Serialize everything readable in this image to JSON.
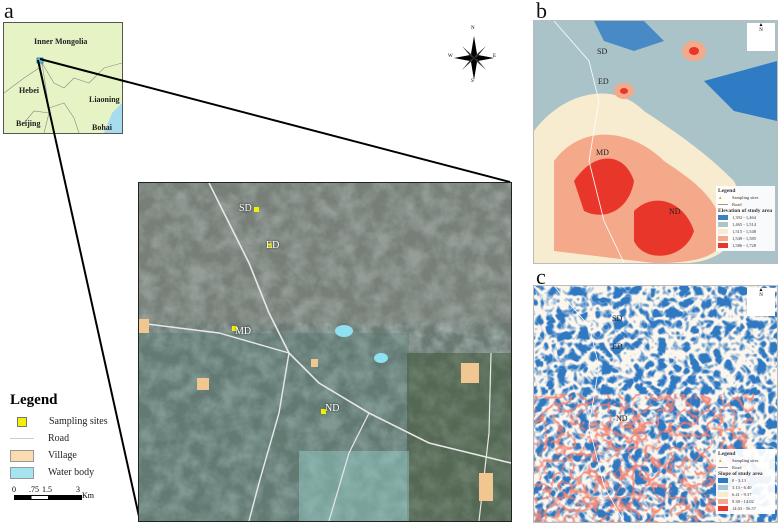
{
  "panels": {
    "a": "a",
    "b": "b",
    "c": "c"
  },
  "inset_map": {
    "regions": [
      "Inner Mongolia",
      "Hebei",
      "Liaoning",
      "Beijing",
      "Bohai Sea"
    ]
  },
  "sites": {
    "SD": "SD",
    "ED": "ED",
    "MD": "MD",
    "ND": "ND"
  },
  "legend_a": {
    "title": "Legend",
    "items": [
      {
        "label": "Sampling sites",
        "color": "#f5f000"
      },
      {
        "label": "Road",
        "color": "#d9d9d9"
      },
      {
        "label": "Village",
        "color": "#fbdcb0"
      },
      {
        "label": "Water body",
        "color": "#a6e4f2"
      }
    ]
  },
  "scale_bar": {
    "ticks": [
      "0",
      ".75",
      "1.5",
      "3"
    ],
    "unit": "Km"
  },
  "compass": {
    "n": "N",
    "s": "S",
    "e": "E",
    "w": "W"
  },
  "legend_b": {
    "title": "Legend",
    "sampling": "Sampling sites",
    "road": "Road",
    "subtitle": "Elevation of study area",
    "classes": [
      {
        "label": "1,392 - 1,464",
        "color": "#3a82c4"
      },
      {
        "label": "1,465 - 1,514",
        "color": "#a9c6cc"
      },
      {
        "label": "1,515 - 1,548",
        "color": "#f8ecd0"
      },
      {
        "label": "1,549 - 1,585",
        "color": "#f4a98a"
      },
      {
        "label": "1,586 - 1,728",
        "color": "#e8372a"
      }
    ]
  },
  "legend_c": {
    "title": "Legend",
    "sampling": "Sampling sites",
    "road": "Road",
    "subtitle": "Slope of study area",
    "classes": [
      {
        "label": "0 - 3.13",
        "color": "#2f78c2"
      },
      {
        "label": "3.13 - 6.40",
        "color": "#a9c6d6"
      },
      {
        "label": "6.41 - 9.37",
        "color": "#f8ecd0"
      },
      {
        "label": "9.38 - 14.02",
        "color": "#f4a98a"
      },
      {
        "label": "14.03 - 56.57",
        "color": "#e8372a"
      }
    ]
  }
}
